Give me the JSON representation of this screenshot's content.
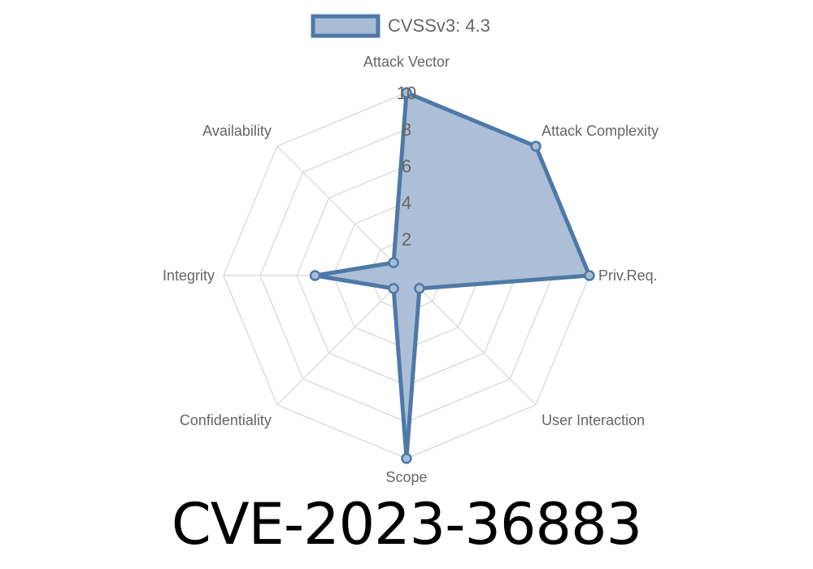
{
  "title": "CVE-2023-36883",
  "chart_data": {
    "type": "radar",
    "axes": [
      "Attack Vector",
      "Attack Complexity",
      "Priv.Req.",
      "User Interaction",
      "Scope",
      "Confidentiality",
      "Integrity",
      "Availability"
    ],
    "series": [
      {
        "name": "CVSSv3: 4.3",
        "values": [
          10,
          10,
          10,
          1,
          10,
          1,
          5,
          1
        ]
      }
    ],
    "rlim": [
      0,
      10
    ],
    "ticks": [
      2,
      4,
      6,
      8,
      10
    ],
    "legend": "top",
    "grid": true,
    "colors": {
      "line": "#4e79a7",
      "fill": "#a8bcd4",
      "grid": "#dddddd",
      "text": "#666666"
    }
  }
}
